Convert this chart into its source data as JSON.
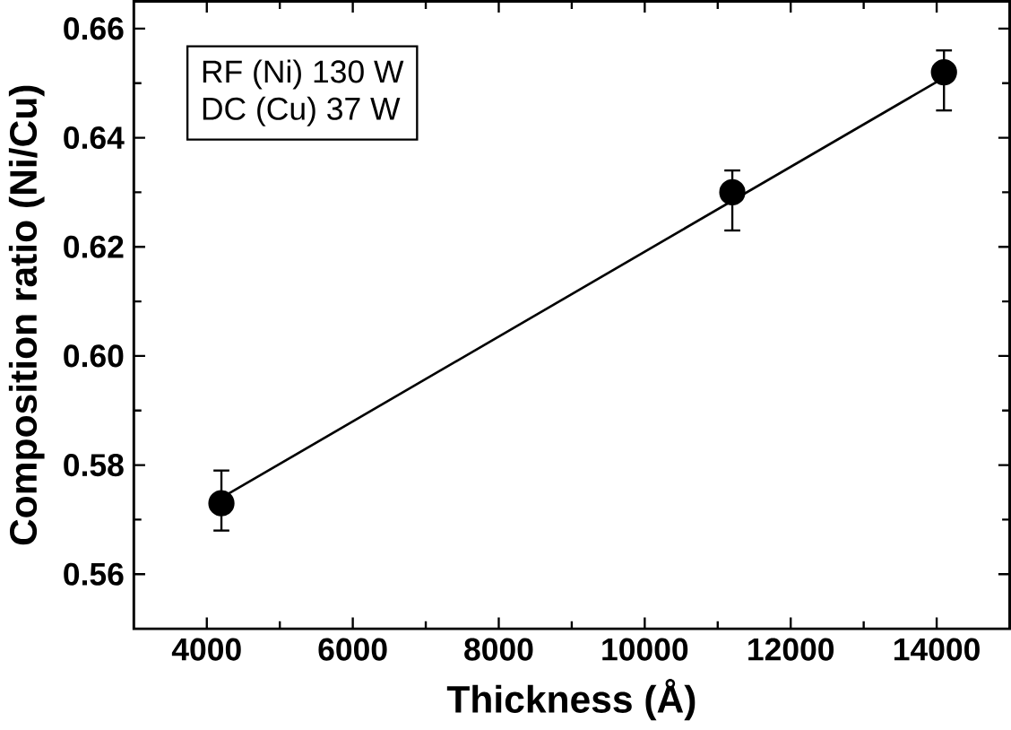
{
  "chart_data": {
    "type": "scatter",
    "xlabel": "Thickness (Å)",
    "ylabel": "Composition ratio (Ni/Cu)",
    "xlim": [
      3000,
      15000
    ],
    "xticks": [
      4000,
      6000,
      8000,
      10000,
      12000,
      14000
    ],
    "ylim": [
      0.55,
      0.665
    ],
    "yticks": [
      0.56,
      0.58,
      {
        "value": 0.6,
        "label": "0.60"
      },
      0.62,
      0.64,
      0.66
    ],
    "annotations": [
      "RF (Ni) 130 W",
      "DC (Cu) 37 W"
    ],
    "marker": "circle",
    "grid": false,
    "series": [
      {
        "color": "#000000",
        "x": [
          4200,
          11200,
          14100
        ],
        "values": [
          0.573,
          0.63,
          0.652
        ],
        "errors": [
          [
            0.568,
            0.579
          ],
          [
            0.623,
            0.634
          ],
          [
            0.645,
            0.656
          ]
        ]
      },
      {
        "type": "line",
        "color": "#000000",
        "marker": "none",
        "x": [
          4200,
          14100
        ],
        "values": [
          0.574,
          0.651
        ]
      }
    ]
  }
}
